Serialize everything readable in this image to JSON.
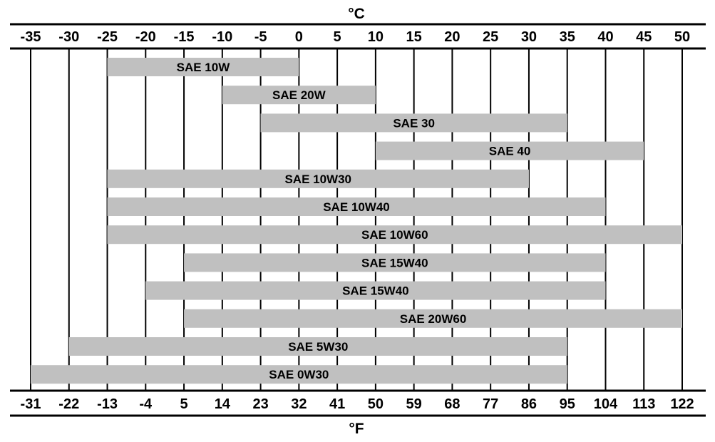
{
  "chart_data": {
    "type": "bar",
    "orientation": "horizontal-range",
    "title": "",
    "top_axis_label": "°C",
    "bottom_axis_label": "°F",
    "celsius_ticks": [
      "-35",
      "-30",
      "-25",
      "-20",
      "-15",
      "-10",
      "-5",
      "0",
      "5",
      "10",
      "15",
      "20",
      "25",
      "30",
      "35",
      "40",
      "45",
      "50"
    ],
    "fahrenheit_ticks": [
      "-31",
      "-22",
      "-13",
      "-4",
      "5",
      "14",
      "23",
      "32",
      "41",
      "50",
      "59",
      "68",
      "77",
      "86",
      "95",
      "104",
      "113",
      "122"
    ],
    "xlim": [
      -35,
      50
    ],
    "grid": true,
    "bar_color": "#c0c0c0",
    "bars": [
      {
        "label": "SAE 10W",
        "start": -25,
        "end": 0
      },
      {
        "label": "SAE 20W",
        "start": -10,
        "end": 10
      },
      {
        "label": "SAE 30",
        "start": -5,
        "end": 35
      },
      {
        "label": "SAE 40",
        "start": 10,
        "end": 45
      },
      {
        "label": "SAE 10W30",
        "start": -25,
        "end": 30
      },
      {
        "label": "SAE 10W40",
        "start": -25,
        "end": 40
      },
      {
        "label": "SAE 10W60",
        "start": -25,
        "end": 50
      },
      {
        "label": "SAE 15W40",
        "start": -15,
        "end": 40
      },
      {
        "label": "SAE 15W40",
        "start": -20,
        "end": 40
      },
      {
        "label": "SAE 20W60",
        "start": -15,
        "end": 50
      },
      {
        "label": "SAE 5W30",
        "start": -30,
        "end": 35
      },
      {
        "label": "SAE 0W30",
        "start": -35,
        "end": 35
      }
    ]
  }
}
